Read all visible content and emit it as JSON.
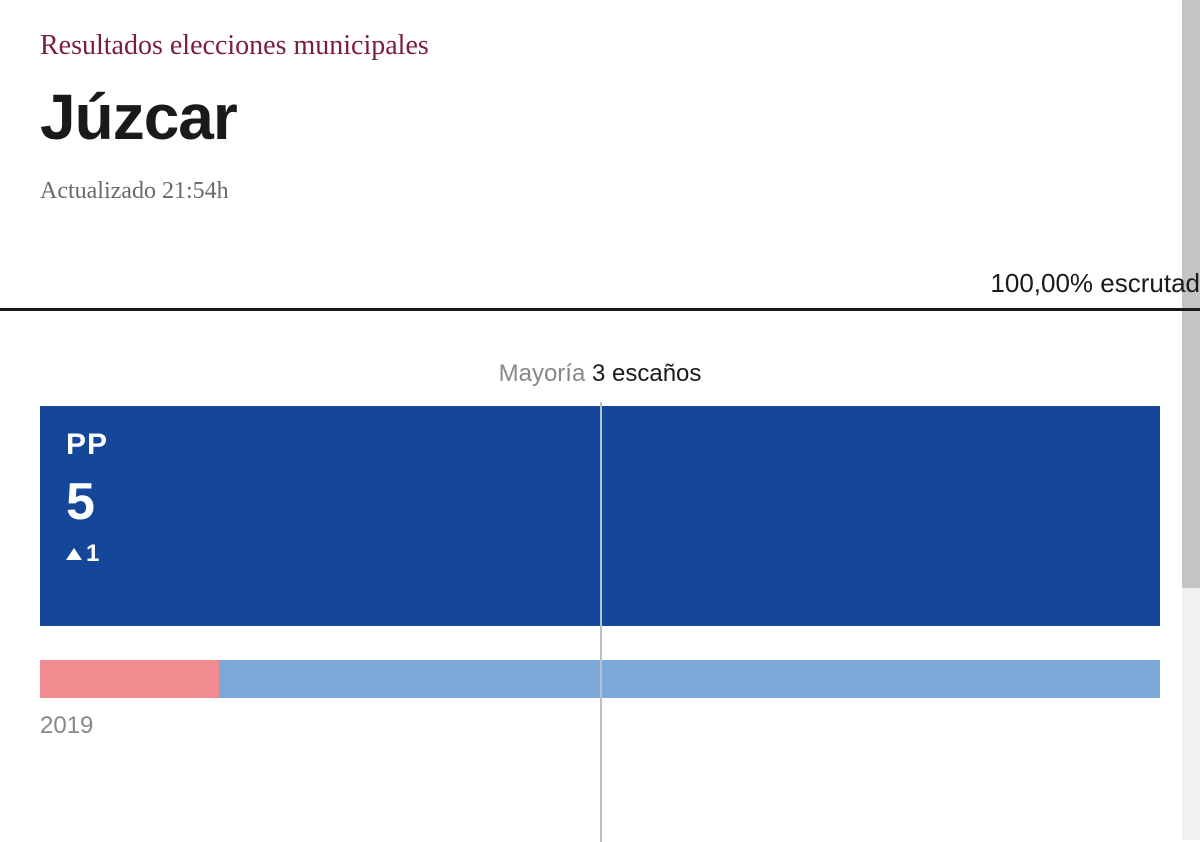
{
  "header": {
    "subtitle": "Resultados elecciones municipales",
    "title": "Júzcar",
    "updated": "Actualizado 21:54h",
    "scrutinized": "100,00% escrutad",
    "subtitle_color": "#7a1e3a",
    "title_color": "#1a1a1a",
    "muted_color": "#6a6a6a"
  },
  "chart": {
    "type": "bar",
    "total_seats": 5,
    "majority": {
      "label": "Mayoría",
      "value": "3 escaños",
      "position_pct": 50,
      "line_color": "#bfbfbf"
    },
    "current": [
      {
        "party": "PP",
        "seats": 5,
        "delta": 1,
        "delta_direction": "up",
        "color": "#14479a",
        "width_pct": 100
      }
    ],
    "previous": {
      "year": "2019",
      "segments": [
        {
          "color": "#f08b8f",
          "width_pct": 16
        },
        {
          "color": "#7aa8d9",
          "width_pct": 84
        }
      ]
    },
    "background_color": "#ffffff"
  },
  "scrollbar": {
    "track_color": "#f1f1f1",
    "thumb_color": "#c4c4c4",
    "thumb_height_pct": 70,
    "thumb_top_pct": 0
  }
}
